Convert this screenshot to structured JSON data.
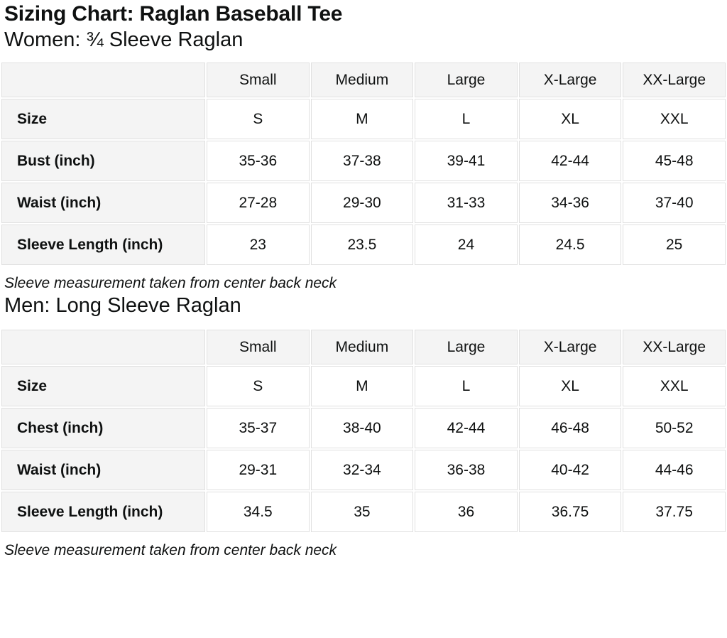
{
  "page": {
    "title": "Sizing Chart: Raglan Baseball Tee"
  },
  "colors": {
    "header_cell_bg": "#f4f4f4",
    "cell_border": "#e0e0e0",
    "text": "#0f1111",
    "background": "#ffffff"
  },
  "sections": [
    {
      "heading": "Women: ¾ Sleeve Raglan",
      "note": "Sleeve measurement taken from center back neck",
      "table": {
        "column_headers": [
          "",
          "Small",
          "Medium",
          "Large",
          "X-Large",
          "XX-Large"
        ],
        "rows": [
          {
            "label": "Size",
            "cells": [
              "S",
              "M",
              "L",
              "XL",
              "XXL"
            ]
          },
          {
            "label": "Bust (inch)",
            "cells": [
              "35-36",
              "37-38",
              "39-41",
              "42-44",
              "45-48"
            ]
          },
          {
            "label": "Waist (inch)",
            "cells": [
              "27-28",
              "29-30",
              "31-33",
              "34-36",
              "37-40"
            ]
          },
          {
            "label": "Sleeve Length (inch)",
            "cells": [
              "23",
              "23.5",
              "24",
              "24.5",
              "25"
            ]
          }
        ]
      }
    },
    {
      "heading": "Men: Long Sleeve Raglan",
      "note": "Sleeve measurement taken from center back neck",
      "table": {
        "column_headers": [
          "",
          "Small",
          "Medium",
          "Large",
          "X-Large",
          "XX-Large"
        ],
        "rows": [
          {
            "label": "Size",
            "cells": [
              "S",
              "M",
              "L",
              "XL",
              "XXL"
            ]
          },
          {
            "label": "Chest (inch)",
            "cells": [
              "35-37",
              "38-40",
              "42-44",
              "46-48",
              "50-52"
            ]
          },
          {
            "label": "Waist (inch)",
            "cells": [
              "29-31",
              "32-34",
              "36-38",
              "40-42",
              "44-46"
            ]
          },
          {
            "label": "Sleeve Length (inch)",
            "cells": [
              "34.5",
              "35",
              "36",
              "36.75",
              "37.75"
            ]
          }
        ]
      }
    }
  ]
}
